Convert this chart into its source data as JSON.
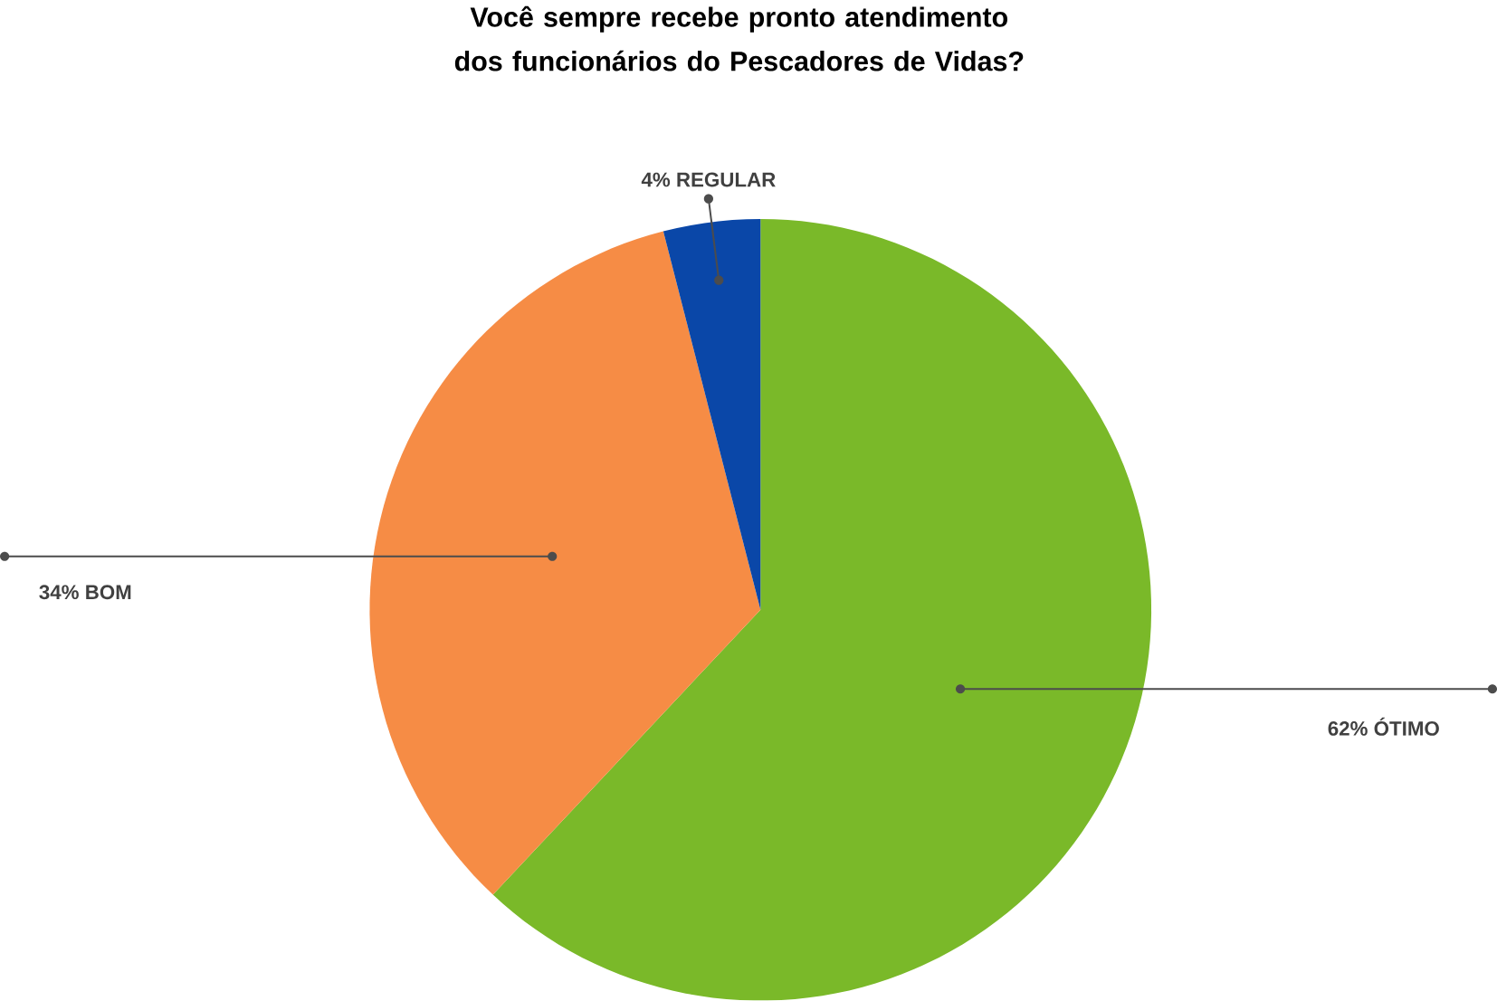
{
  "chart_data": {
    "type": "pie",
    "title": "Você sempre recebe pronto atendimento dos funcionários do Pescadores de Vidas?",
    "categories": [
      "ÓTIMO",
      "BOM",
      "REGULAR"
    ],
    "values": [
      62,
      34,
      4
    ],
    "value_labels": [
      "62%",
      "34%",
      "4%"
    ],
    "colors": [
      "#7ab929",
      "#f68c45",
      "#0a47a8"
    ]
  }
}
